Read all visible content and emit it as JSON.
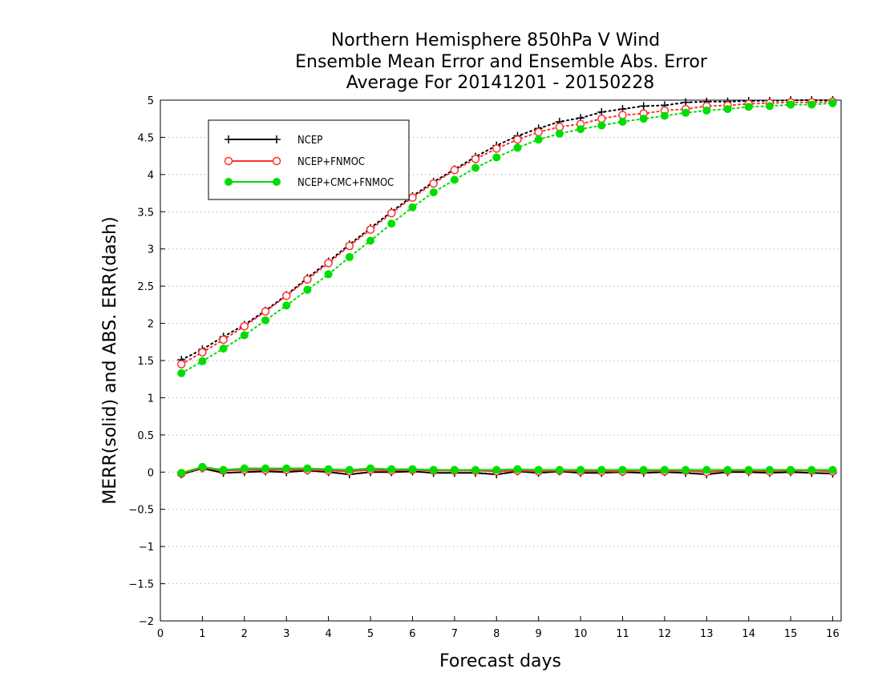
{
  "chart_data": {
    "type": "line",
    "title_lines": [
      "Northern Hemisphere 850hPa V Wind",
      "Ensemble Mean Error and Ensemble Abs. Error",
      "Average For 20141201 - 20150228"
    ],
    "xlabel": "Forecast days",
    "ylabel": "MERR(solid) and ABS. ERR(dash)",
    "xlim": [
      0,
      16.2
    ],
    "ylim": [
      -2,
      5
    ],
    "x_ticks": [
      "0",
      "1",
      "2",
      "3",
      "4",
      "5",
      "6",
      "7",
      "8",
      "9",
      "10",
      "11",
      "12",
      "13",
      "14",
      "15",
      "16"
    ],
    "y_ticks": [
      "5",
      "4.5",
      "4",
      "3.5",
      "3",
      "2.5",
      "2",
      "1.5",
      "1",
      "0.5",
      "0",
      "−0.5",
      "−1",
      "−1.5",
      "−2"
    ],
    "y_tick_values": [
      5,
      4.5,
      4,
      3.5,
      3,
      2.5,
      2,
      1.5,
      1,
      0.5,
      0,
      -0.5,
      -1,
      -1.5,
      -2
    ],
    "grid": "horizontal-dotted",
    "legend_position": "top-left",
    "x": [
      0.5,
      1,
      1.5,
      2,
      2.5,
      3,
      3.5,
      4,
      4.5,
      5,
      5.5,
      6,
      6.5,
      7,
      7.5,
      8,
      8.5,
      9,
      9.5,
      10,
      10.5,
      11,
      11.5,
      12,
      12.5,
      13,
      13.5,
      14,
      14.5,
      15,
      15.5,
      16
    ],
    "series": [
      {
        "name": "NCEP",
        "color": "#000000",
        "marker": "plus",
        "abs_err": [
          1.51,
          1.65,
          1.82,
          1.98,
          2.17,
          2.38,
          2.61,
          2.83,
          3.06,
          3.28,
          3.5,
          3.71,
          3.9,
          4.07,
          4.24,
          4.39,
          4.52,
          4.62,
          4.71,
          4.76,
          4.84,
          4.88,
          4.92,
          4.93,
          4.97,
          4.98,
          4.98,
          4.99,
          4.99,
          5.0,
          5.0,
          5.0
        ],
        "mean_err": [
          -0.03,
          0.05,
          -0.01,
          0.0,
          0.01,
          0.0,
          0.02,
          0.0,
          -0.03,
          0.0,
          0.0,
          0.01,
          -0.01,
          -0.01,
          -0.01,
          -0.03,
          0.01,
          -0.01,
          0.01,
          -0.01,
          -0.01,
          0.0,
          -0.01,
          0.0,
          -0.01,
          -0.03,
          0.0,
          0.0,
          -0.01,
          0.0,
          -0.01,
          -0.02
        ]
      },
      {
        "name": "NCEP+FNMOC",
        "color": "#ff3030",
        "marker": "open-circle",
        "abs_err": [
          1.45,
          1.61,
          1.78,
          1.96,
          2.16,
          2.37,
          2.59,
          2.81,
          3.04,
          3.26,
          3.48,
          3.69,
          3.88,
          4.06,
          4.21,
          4.35,
          4.47,
          4.57,
          4.64,
          4.68,
          4.75,
          4.8,
          4.82,
          4.86,
          4.88,
          4.92,
          4.93,
          4.95,
          4.96,
          4.97,
          4.97,
          4.98
        ],
        "mean_err": [
          -0.02,
          0.06,
          0.02,
          0.03,
          0.03,
          0.03,
          0.03,
          0.02,
          0.01,
          0.03,
          0.02,
          0.03,
          0.02,
          0.02,
          0.02,
          0.01,
          0.02,
          0.01,
          0.02,
          0.01,
          0.01,
          0.01,
          0.02,
          0.01,
          0.02,
          0.0,
          0.02,
          0.02,
          0.01,
          0.02,
          0.02,
          0.01
        ]
      },
      {
        "name": "NCEP+CMC+FNMOC",
        "color": "#00dd00",
        "marker": "filled-circle",
        "abs_err": [
          1.33,
          1.49,
          1.66,
          1.84,
          2.04,
          2.24,
          2.45,
          2.66,
          2.89,
          3.11,
          3.34,
          3.56,
          3.76,
          3.93,
          4.09,
          4.23,
          4.36,
          4.47,
          4.55,
          4.61,
          4.66,
          4.71,
          4.75,
          4.79,
          4.83,
          4.86,
          4.88,
          4.91,
          4.92,
          4.94,
          4.94,
          4.96
        ],
        "mean_err": [
          -0.01,
          0.07,
          0.03,
          0.05,
          0.05,
          0.05,
          0.05,
          0.04,
          0.03,
          0.05,
          0.04,
          0.04,
          0.03,
          0.03,
          0.03,
          0.03,
          0.04,
          0.03,
          0.03,
          0.03,
          0.03,
          0.03,
          0.03,
          0.03,
          0.03,
          0.03,
          0.03,
          0.03,
          0.03,
          0.03,
          0.03,
          0.03
        ]
      }
    ]
  }
}
